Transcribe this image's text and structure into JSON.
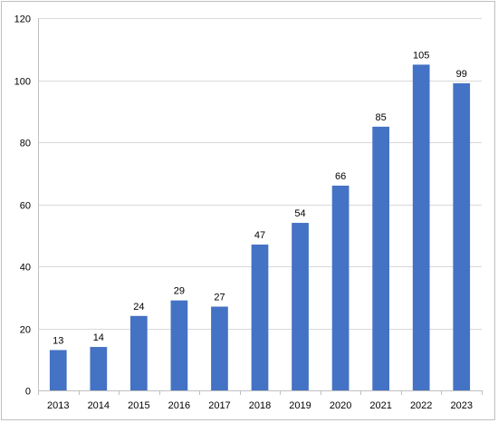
{
  "chart_data": {
    "type": "bar",
    "categories": [
      "2013",
      "2014",
      "2015",
      "2016",
      "2017",
      "2018",
      "2019",
      "2020",
      "2021",
      "2022",
      "2023"
    ],
    "values": [
      13,
      14,
      24,
      29,
      27,
      47,
      54,
      66,
      85,
      105,
      99
    ],
    "data_labels": [
      "13",
      "14",
      "24",
      "29",
      "27",
      "47",
      "54",
      "66",
      "85",
      "105",
      "99"
    ],
    "title": "",
    "xlabel": "",
    "ylabel": "",
    "ylim": [
      0,
      120
    ],
    "yticks": [
      0,
      20,
      40,
      60,
      80,
      100,
      120
    ],
    "ytick_labels": [
      "0",
      "20",
      "40",
      "60",
      "80",
      "100",
      "120"
    ],
    "grid": true,
    "legend": "none",
    "bar_color": "#4472c4",
    "grid_color": "#d9d9d9",
    "axis_color": "#bfbfbf"
  }
}
